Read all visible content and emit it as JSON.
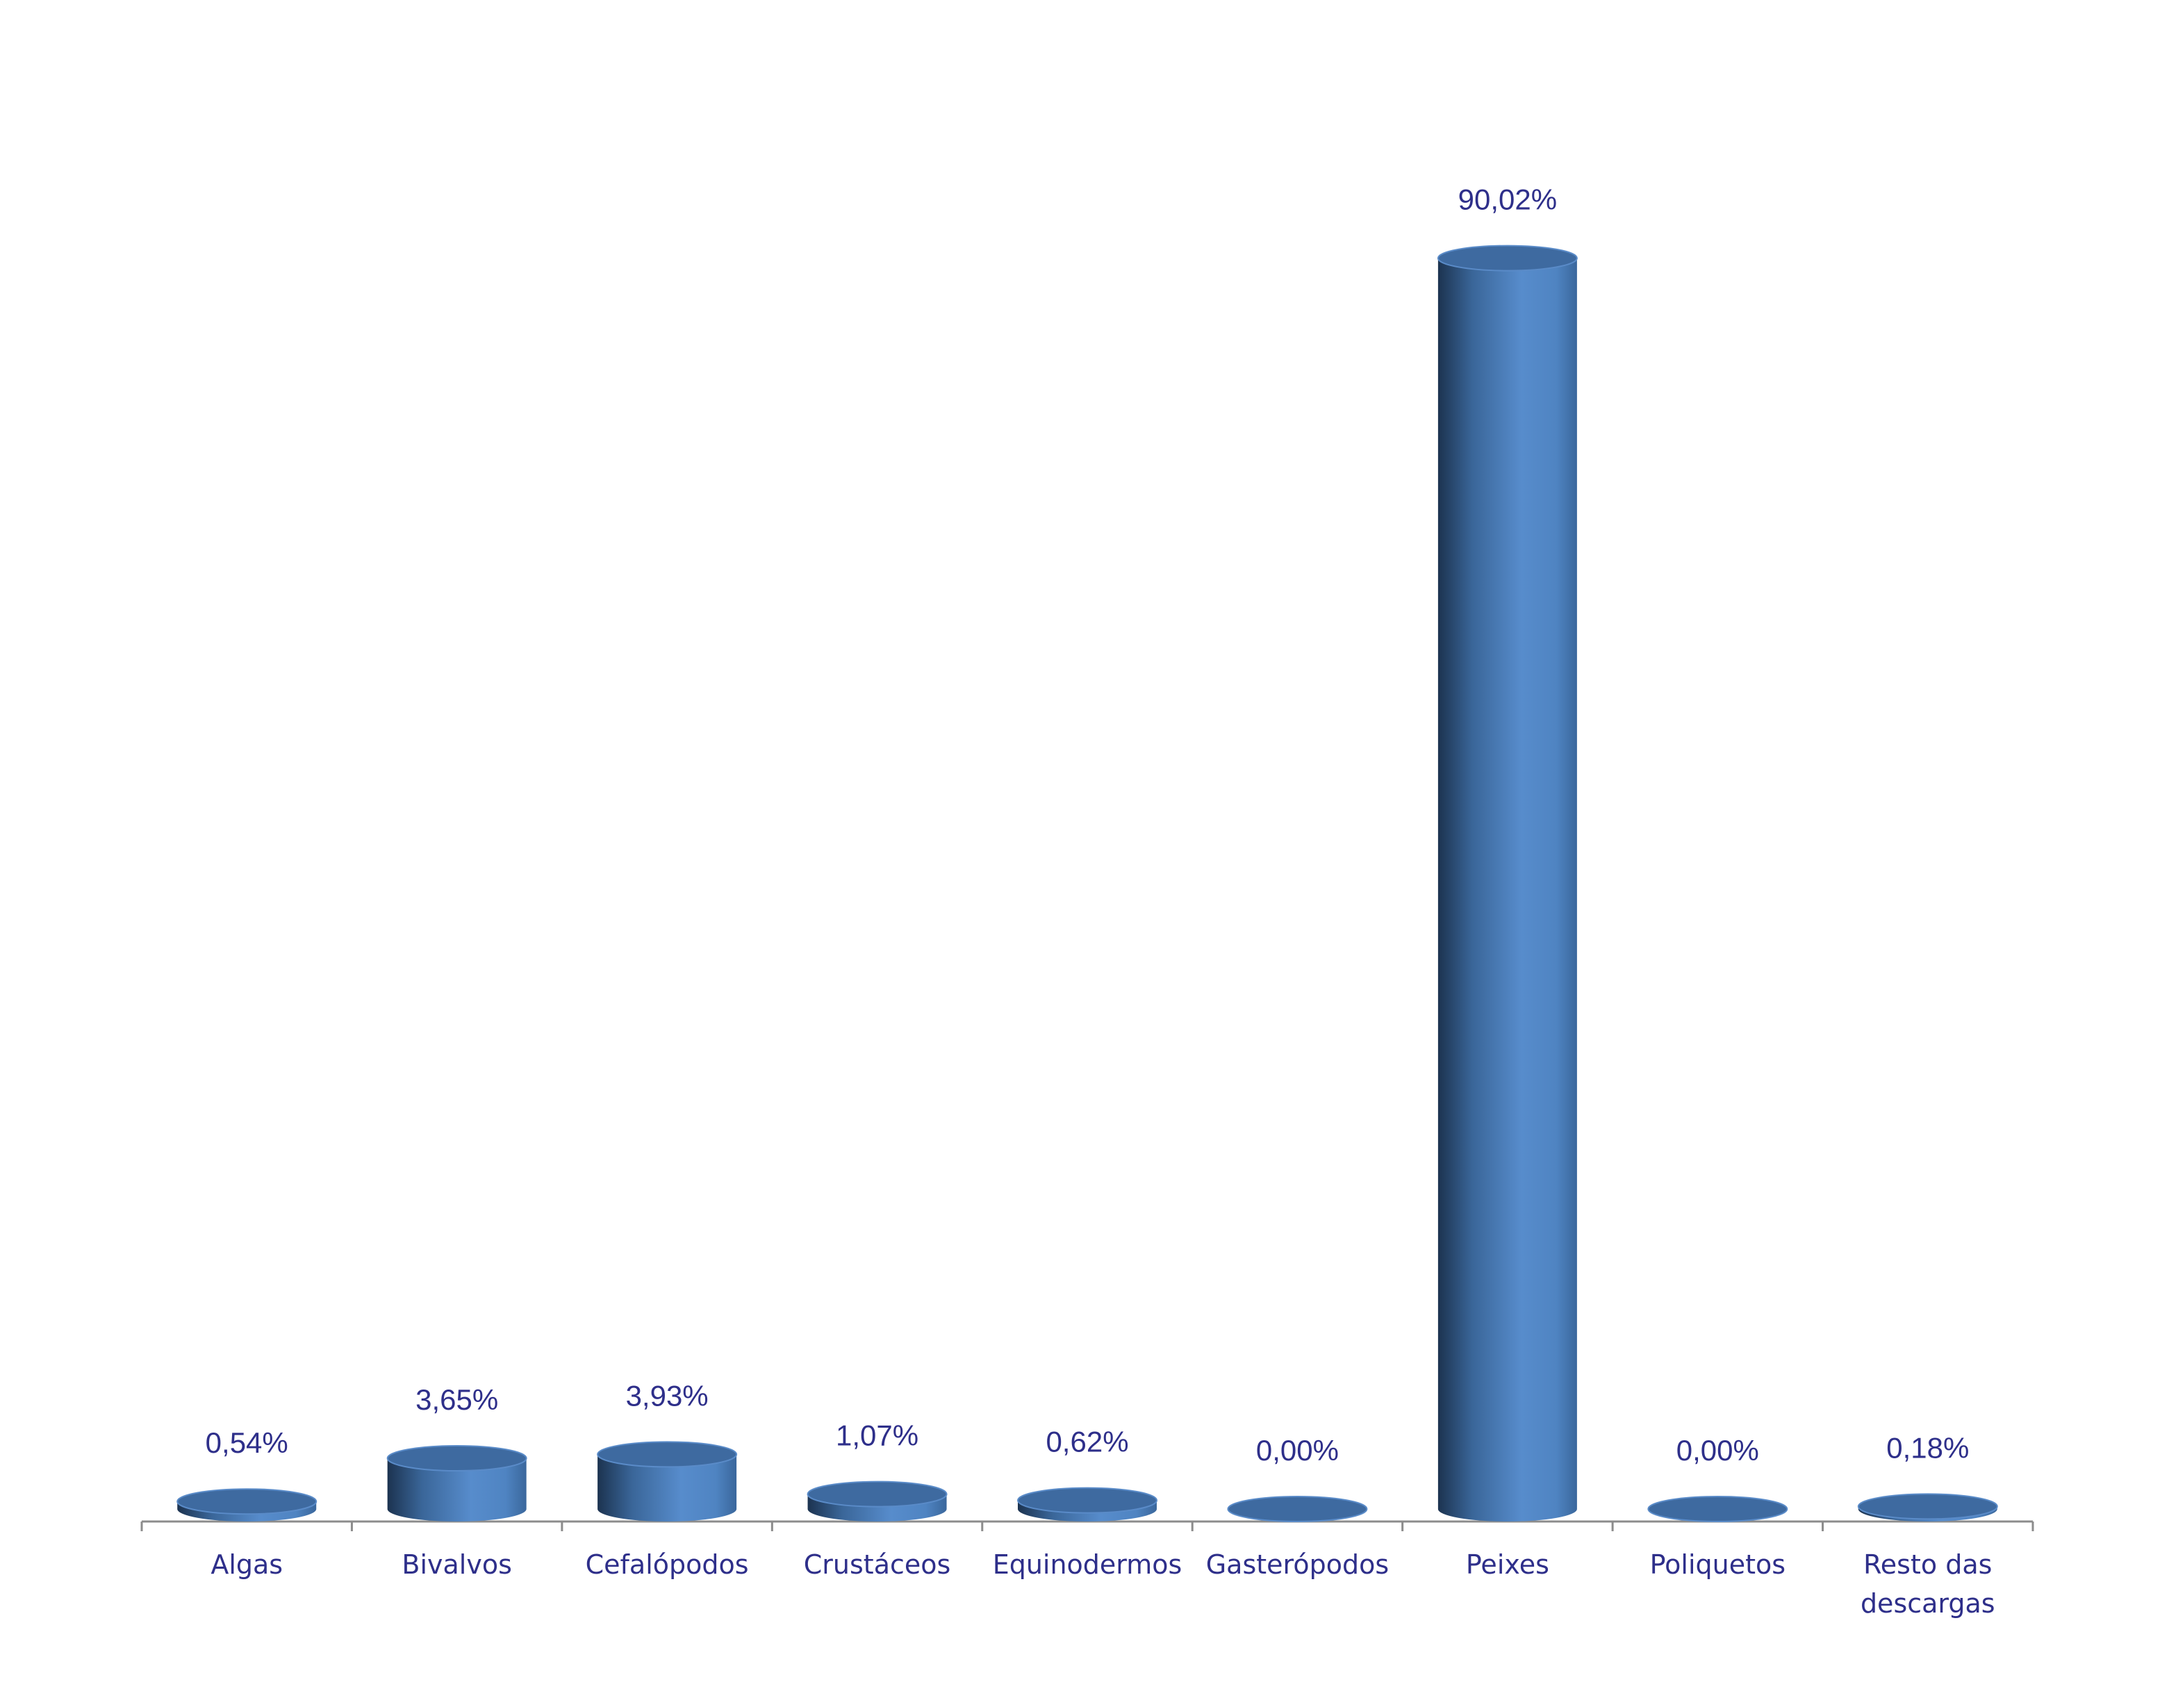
{
  "chart_data": {
    "type": "bar",
    "categories": [
      "Algas",
      "Bivalvos",
      "Cefalópodos",
      "Crustáceos",
      "Equinodermos",
      "Gasterópodos",
      "Peixes",
      "Poliquetos",
      "Resto das descargas"
    ],
    "values": [
      0.54,
      3.65,
      3.93,
      1.07,
      0.62,
      0.0,
      90.02,
      0.0,
      0.18
    ],
    "value_labels": [
      "0,54%",
      "3,65%",
      "3,93%",
      "1,07%",
      "0,62%",
      "0,00%",
      "90,02%",
      "0,00%",
      "0,18%"
    ],
    "color": "#4f86c6"
  }
}
